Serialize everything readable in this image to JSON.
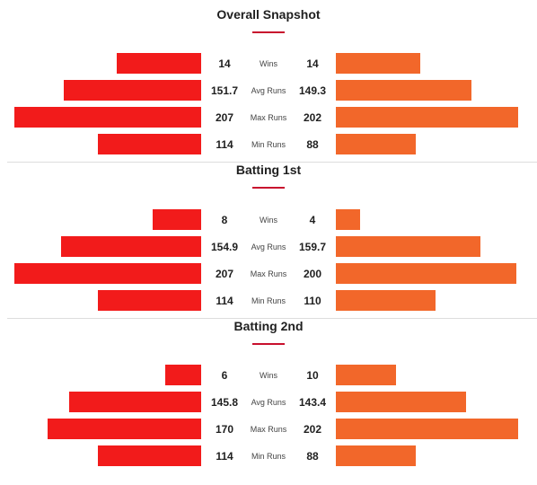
{
  "colors": {
    "left": "#f21b1b",
    "right": "#f2672a",
    "accent": "#c8102e"
  },
  "chart_data": [
    {
      "type": "bar",
      "title": "Overall Snapshot",
      "categories": [
        "Wins",
        "Avg Runs",
        "Max Runs",
        "Min Runs"
      ],
      "left": [
        "14",
        "151.7",
        "207",
        "114"
      ],
      "right": [
        "14",
        "149.3",
        "202",
        "88"
      ],
      "series": [
        {
          "values": [
            14,
            151.7,
            207,
            114
          ]
        },
        {
          "values": [
            14,
            149.3,
            202,
            88
          ]
        }
      ]
    },
    {
      "type": "bar",
      "title": "Batting 1st",
      "categories": [
        "Wins",
        "Avg Runs",
        "Max Runs",
        "Min Runs"
      ],
      "left": [
        "8",
        "154.9",
        "207",
        "114"
      ],
      "right": [
        "4",
        "159.7",
        "200",
        "110"
      ],
      "series": [
        {
          "values": [
            8,
            154.9,
            207,
            114
          ]
        },
        {
          "values": [
            4,
            159.7,
            200,
            110
          ]
        }
      ]
    },
    {
      "type": "bar",
      "title": "Batting 2nd",
      "categories": [
        "Wins",
        "Avg Runs",
        "Max Runs",
        "Min Runs"
      ],
      "left": [
        "6",
        "145.8",
        "170",
        "114"
      ],
      "right": [
        "10",
        "143.4",
        "202",
        "88"
      ],
      "series": [
        {
          "values": [
            6,
            145.8,
            170,
            114
          ]
        },
        {
          "values": [
            10,
            143.4,
            202,
            88
          ]
        }
      ]
    }
  ]
}
